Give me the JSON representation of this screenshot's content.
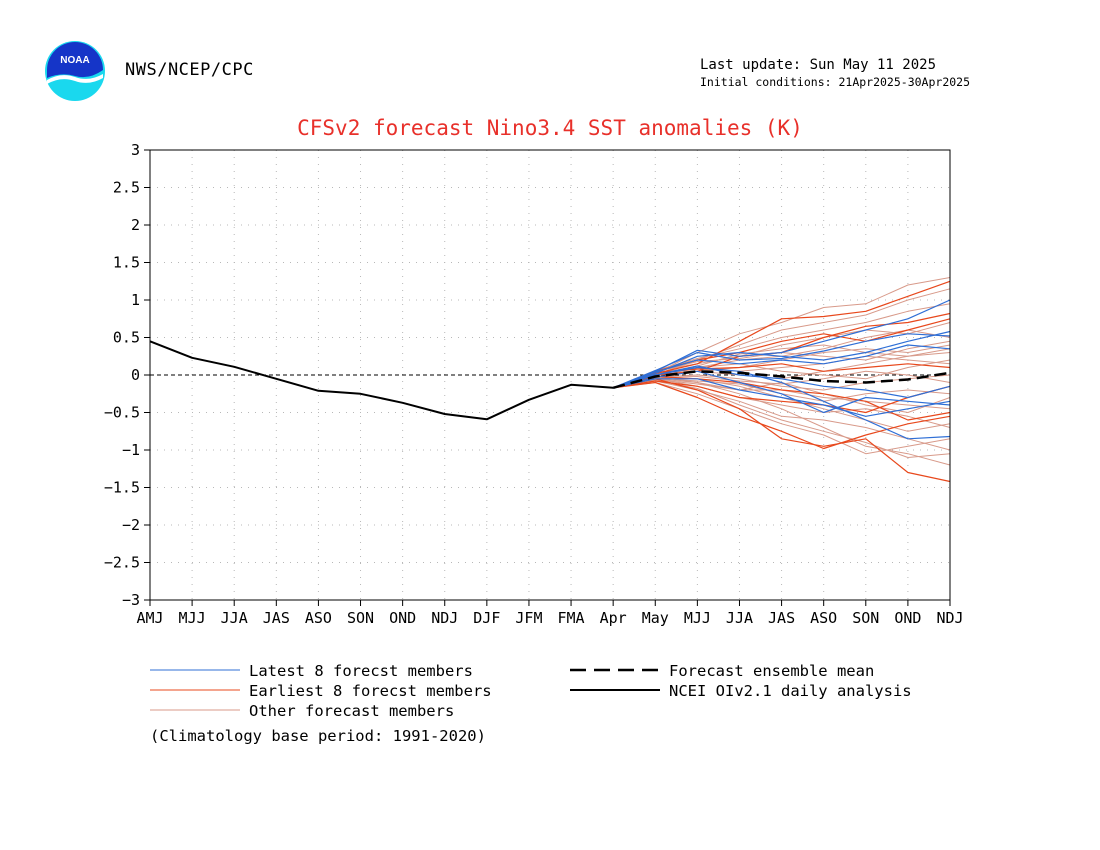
{
  "header": {
    "agency": "NWS/NCEP/CPC",
    "last_update": "Last update: Sun May 11 2025",
    "initial_conditions": "Initial conditions: 21Apr2025-30Apr2025",
    "logo_text": "NOAA"
  },
  "legend": {
    "latest": "Latest 8 forecst members",
    "earliest": "Earliest 8 forecst members",
    "other": "Other forecast members",
    "mean": "Forecast ensemble mean",
    "analysis": "NCEI OIv2.1 daily analysis"
  },
  "footnote": "(Climatology base period: 1991-2020)",
  "colors": {
    "latest": "#2f6fd6",
    "earliest": "#e8481c",
    "other": "#d89a8a",
    "mean": "#000000",
    "analysis": "#000000",
    "title": "#e8302a"
  },
  "chart_data": {
    "type": "line",
    "title": "CFSv2 forecast Nino3.4 SST anomalies (K)",
    "categories": [
      "AMJ",
      "MJJ",
      "JJA",
      "JAS",
      "ASO",
      "SON",
      "OND",
      "NDJ",
      "DJF",
      "JFM",
      "FMA",
      "Apr",
      "May",
      "MJJ",
      "JJA",
      "JAS",
      "ASO",
      "SON",
      "OND",
      "NDJ"
    ],
    "y_ticks": [
      "3",
      "2.5",
      "2",
      "1.5",
      "1",
      "0.5",
      "0",
      "-0.5",
      "-1",
      "-1.5",
      "-2",
      "-2.5",
      "-3"
    ],
    "ylim": [
      -3,
      3
    ],
    "grid": true,
    "analysis": {
      "name": "NCEI OIv2.1 daily analysis",
      "x_start": 0,
      "values": [
        0.45,
        0.23,
        0.11,
        -0.05,
        -0.21,
        -0.25,
        -0.37,
        -0.52,
        -0.59,
        -0.33,
        -0.13,
        -0.17
      ]
    },
    "ensemble_mean": {
      "name": "Forecast ensemble mean",
      "x_start": 11,
      "values": [
        -0.17,
        -0.02,
        0.05,
        0.03,
        -0.02,
        -0.08,
        -0.1,
        -0.06,
        0.03
      ]
    },
    "latest_members": [
      [
        -0.17,
        0.05,
        0.33,
        0.25,
        0.3,
        0.45,
        0.6,
        0.75,
        1.0
      ],
      [
        -0.17,
        0.02,
        0.25,
        0.3,
        0.25,
        0.2,
        0.3,
        0.45,
        0.58
      ],
      [
        -0.17,
        0.0,
        0.1,
        0.05,
        -0.1,
        -0.35,
        -0.6,
        -0.85,
        -0.82
      ],
      [
        -0.17,
        -0.03,
        0.05,
        -0.1,
        -0.25,
        -0.5,
        -0.3,
        -0.35,
        -0.4
      ],
      [
        -0.17,
        0.04,
        0.2,
        0.15,
        0.2,
        0.15,
        0.25,
        0.4,
        0.35
      ],
      [
        -0.17,
        -0.05,
        -0.05,
        -0.2,
        -0.3,
        -0.4,
        -0.55,
        -0.45,
        -0.35
      ],
      [
        -0.17,
        0.06,
        0.3,
        0.2,
        0.22,
        0.32,
        0.45,
        0.55,
        0.52
      ],
      [
        -0.17,
        0.0,
        0.12,
        0.0,
        -0.05,
        -0.15,
        -0.2,
        -0.3,
        -0.15
      ]
    ],
    "earliest_members": [
      [
        -0.17,
        0.02,
        0.15,
        0.45,
        0.75,
        0.78,
        0.85,
        1.05,
        1.25
      ],
      [
        -0.17,
        -0.05,
        -0.2,
        -0.45,
        -0.85,
        -0.95,
        -0.85,
        -1.3,
        -1.42
      ],
      [
        -0.17,
        0.0,
        0.05,
        0.25,
        0.3,
        0.5,
        0.65,
        0.7,
        0.82
      ],
      [
        -0.17,
        -0.1,
        -0.3,
        -0.55,
        -0.75,
        -0.98,
        -0.8,
        -0.65,
        -0.55
      ],
      [
        -0.17,
        0.03,
        0.08,
        0.1,
        0.15,
        0.05,
        0.1,
        0.15,
        0.1
      ],
      [
        -0.17,
        -0.08,
        -0.15,
        -0.3,
        -0.35,
        -0.4,
        -0.5,
        -0.3,
        -0.15
      ],
      [
        -0.17,
        0.05,
        0.2,
        0.3,
        0.45,
        0.55,
        0.45,
        0.6,
        0.75
      ],
      [
        -0.17,
        -0.02,
        -0.05,
        -0.1,
        -0.2,
        -0.25,
        -0.35,
        -0.6,
        -0.5
      ]
    ],
    "other_members": [
      [
        -0.17,
        0.02,
        0.3,
        0.55,
        0.7,
        0.9,
        0.95,
        1.2,
        1.3
      ],
      [
        -0.17,
        0.0,
        0.2,
        0.4,
        0.6,
        0.7,
        0.8,
        1.0,
        1.15
      ],
      [
        -0.17,
        0.05,
        0.15,
        0.25,
        0.4,
        0.5,
        0.6,
        0.55,
        0.7
      ],
      [
        -0.17,
        -0.05,
        -0.1,
        -0.25,
        -0.45,
        -0.7,
        -0.95,
        -1.05,
        -1.2
      ],
      [
        -0.17,
        -0.1,
        -0.25,
        -0.45,
        -0.65,
        -0.8,
        -1.05,
        -0.95,
        -0.85
      ],
      [
        -0.17,
        0.0,
        0.05,
        0.1,
        0.2,
        0.3,
        0.35,
        0.3,
        0.4
      ],
      [
        -0.17,
        -0.02,
        -0.05,
        -0.15,
        -0.3,
        -0.45,
        -0.6,
        -0.75,
        -0.65
      ],
      [
        -0.17,
        0.03,
        0.1,
        0.15,
        0.05,
        0.0,
        -0.05,
        0.1,
        0.2
      ],
      [
        -0.17,
        -0.06,
        -0.12,
        -0.2,
        -0.1,
        -0.25,
        -0.4,
        -0.5,
        -0.3
      ],
      [
        -0.17,
        0.04,
        0.18,
        0.22,
        0.3,
        0.25,
        0.2,
        0.35,
        0.45
      ],
      [
        -0.17,
        -0.03,
        0.0,
        -0.05,
        -0.15,
        -0.2,
        -0.1,
        -0.05,
        0.0
      ],
      [
        -0.17,
        -0.08,
        -0.2,
        -0.35,
        -0.55,
        -0.6,
        -0.7,
        -0.85,
        -1.0
      ],
      [
        -0.17,
        0.01,
        0.12,
        0.28,
        0.35,
        0.4,
        0.3,
        0.25,
        0.3
      ],
      [
        -0.17,
        -0.04,
        -0.08,
        -0.12,
        -0.25,
        -0.35,
        -0.25,
        -0.2,
        -0.25
      ],
      [
        -0.17,
        0.02,
        0.08,
        0.05,
        0.1,
        0.15,
        0.25,
        0.2,
        0.15
      ],
      [
        -0.17,
        -0.05,
        -0.15,
        -0.3,
        -0.4,
        -0.5,
        -0.45,
        -0.55,
        -0.7
      ],
      [
        -0.17,
        0.06,
        0.22,
        0.35,
        0.5,
        0.6,
        0.7,
        0.85,
        0.95
      ],
      [
        -0.17,
        -0.01,
        -0.02,
        -0.08,
        -0.12,
        -0.05,
        0.05,
        0.0,
        -0.1
      ],
      [
        -0.17,
        0.0,
        0.1,
        0.2,
        0.25,
        0.35,
        0.5,
        0.6,
        0.5
      ],
      [
        -0.17,
        -0.07,
        -0.18,
        -0.4,
        -0.6,
        -0.75,
        -0.9,
        -1.1,
        -1.05
      ],
      [
        -0.17,
        0.03,
        0.05,
        0.0,
        -0.05,
        0.05,
        0.15,
        0.25,
        0.35
      ],
      [
        -0.17,
        -0.02,
        -0.1,
        -0.2,
        -0.2,
        -0.3,
        -0.35,
        -0.4,
        -0.45
      ]
    ]
  }
}
